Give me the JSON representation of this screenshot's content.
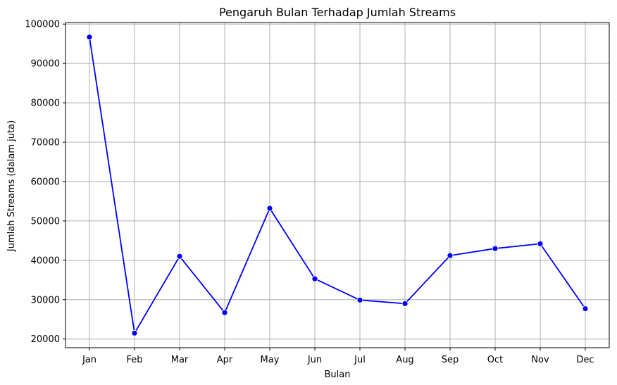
{
  "chart_data": {
    "type": "line",
    "title": "Pengaruh Bulan Terhadap Jumlah Streams",
    "xlabel": "Bulan",
    "ylabel": "Jumlah Streams (dalam juta)",
    "categories": [
      "Jan",
      "Feb",
      "Mar",
      "Apr",
      "May",
      "Jun",
      "Jul",
      "Aug",
      "Sep",
      "Oct",
      "Nov",
      "Dec"
    ],
    "values": [
      96700,
      21500,
      41000,
      26700,
      53200,
      35300,
      29900,
      29000,
      41200,
      43000,
      44200,
      27700
    ],
    "ylim": [
      17800,
      100400
    ],
    "yticks": [
      20000,
      30000,
      40000,
      50000,
      60000,
      70000,
      80000,
      90000,
      100000
    ],
    "ytick_labels": [
      "20000",
      "30000",
      "40000",
      "50000",
      "60000",
      "70000",
      "80000",
      "90000",
      "100000"
    ],
    "grid": true,
    "line_color": "#0000ff",
    "marker_color": "#0000ff",
    "grid_color": "#b0b0b0"
  }
}
